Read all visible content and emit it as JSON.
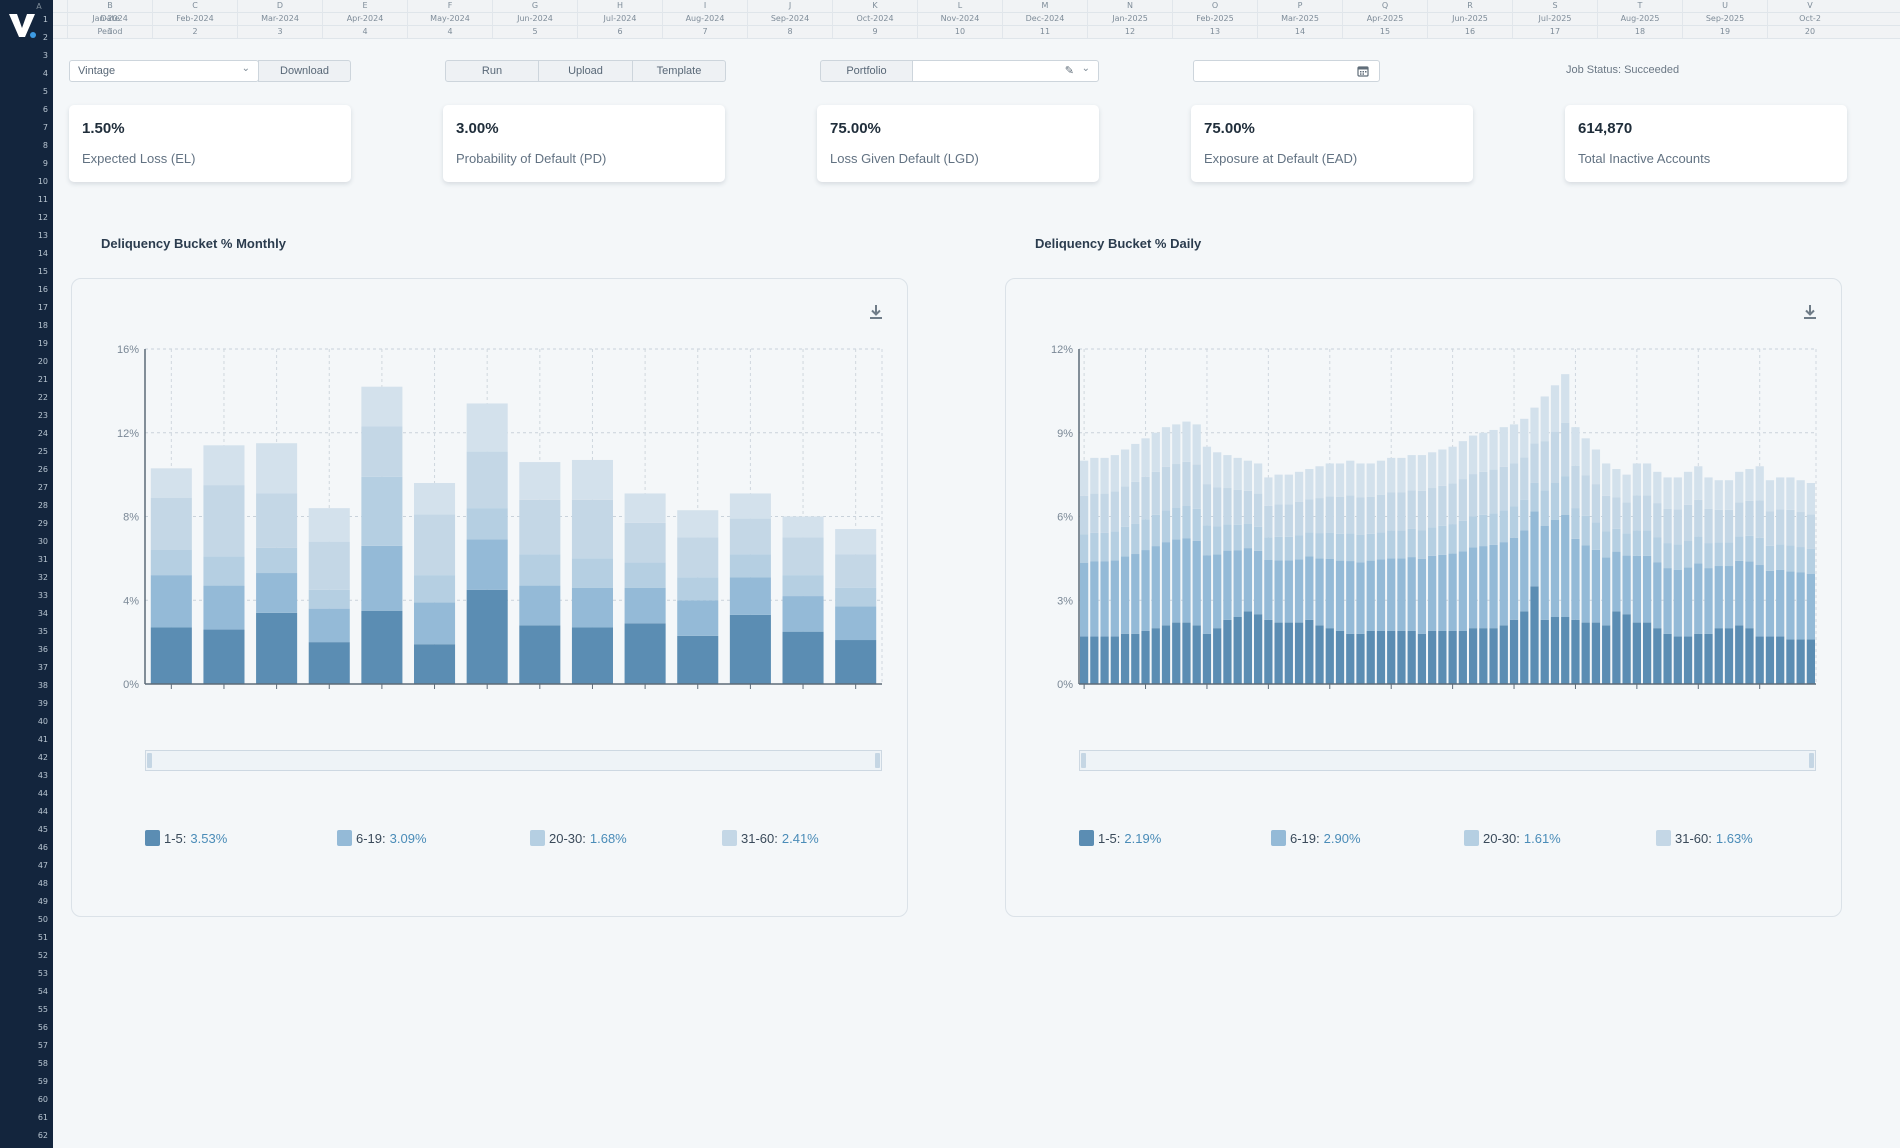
{
  "sheet": {
    "col_letters": [
      "B",
      "C",
      "D",
      "E",
      "F",
      "G",
      "H",
      "I",
      "J",
      "K",
      "L",
      "M",
      "N",
      "O",
      "P",
      "Q",
      "R",
      "S",
      "T",
      "U",
      "V"
    ],
    "row1_label": "Date",
    "row2_label": "Period",
    "dates": [
      "Jan-2024",
      "Feb-2024",
      "Mar-2024",
      "Apr-2024",
      "May-2024",
      "Jun-2024",
      "Jul-2024",
      "Aug-2024",
      "Sep-2024",
      "Oct-2024",
      "Nov-2024",
      "Dec-2024",
      "Jan-2025",
      "Feb-2025",
      "Mar-2025",
      "Apr-2025",
      "Jun-2025",
      "Jul-2025",
      "Aug-2025",
      "Sep-2025",
      "Oct-2"
    ],
    "periods": [
      "1",
      "2",
      "3",
      "4",
      "4",
      "5",
      "6",
      "7",
      "8",
      "9",
      "10",
      "11",
      "12",
      "13",
      "14",
      "15",
      "16",
      "17",
      "18",
      "19",
      "20"
    ],
    "first_col_letter": "A",
    "row_numbers": [
      "1",
      "2",
      "3",
      "4",
      "5",
      "6",
      "7",
      "8",
      "9",
      "10",
      "11",
      "12",
      "13",
      "14",
      "15",
      "16",
      "17",
      "18",
      "19",
      "20",
      "21",
      "22",
      "23",
      "24",
      "25",
      "26",
      "27",
      "28",
      "29",
      "30",
      "31",
      "32",
      "33",
      "34",
      "35",
      "36",
      "37",
      "38",
      "39",
      "40",
      "41",
      "42",
      "43",
      "44",
      "44",
      "45",
      "46",
      "47",
      "48",
      "49",
      "50",
      "51",
      "52",
      "53",
      "54",
      "55",
      "56",
      "57",
      "58",
      "59",
      "60",
      "61",
      "62"
    ]
  },
  "toolbar": {
    "vintage_placeholder": "Vintage",
    "download_label": "Download",
    "run_label": "Run",
    "upload_label": "Upload",
    "template_label": "Template",
    "portfolio_label": "Portfolio",
    "job_status": "Job Status: Succeeded"
  },
  "kpis": [
    {
      "value": "1.50%",
      "label": "Expected Loss (EL)"
    },
    {
      "value": "3.00%",
      "label": "Probability of Default (PD)"
    },
    {
      "value": "75.00%",
      "label": "Loss Given Default (LGD)"
    },
    {
      "value": "75.00%",
      "label": "Exposure at Default (EAD)"
    },
    {
      "value": "614,870",
      "label": "Total Inactive Accounts"
    }
  ],
  "colors": {
    "s1": "#5b8db3",
    "s2": "#94bad7",
    "s3": "#b5cfe2",
    "s4": "#c4d7e6",
    "s5": "#d3e1ec",
    "accent": "#4a8cb8",
    "sidebar": "#13253d"
  },
  "chart_data": [
    {
      "type": "bar",
      "title": "Deliquency Bucket % Monthly",
      "stacked": true,
      "ylim": [
        0,
        16
      ],
      "yticks": [
        "0%",
        "4%",
        "8%",
        "12%",
        "16%"
      ],
      "x_count": 14,
      "series": [
        {
          "values": [
            2.7,
            2.6,
            3.4,
            2.0,
            3.5,
            1.9,
            4.5,
            2.8,
            2.7,
            2.9,
            2.3,
            3.3,
            2.5,
            2.1
          ]
        },
        {
          "values": [
            2.5,
            2.1,
            1.9,
            1.6,
            3.1,
            2.0,
            2.4,
            1.9,
            1.9,
            1.7,
            1.7,
            1.8,
            1.7,
            1.6
          ]
        },
        {
          "values": [
            1.2,
            1.4,
            1.2,
            0.9,
            3.3,
            1.3,
            1.5,
            1.5,
            1.4,
            1.2,
            1.1,
            1.1,
            1.0,
            0.9
          ]
        },
        {
          "values": [
            2.5,
            3.4,
            2.6,
            2.3,
            2.4,
            2.9,
            2.7,
            2.6,
            2.8,
            1.9,
            1.9,
            1.7,
            1.8,
            1.6
          ]
        },
        {
          "values": [
            1.4,
            1.9,
            2.4,
            1.6,
            1.9,
            1.5,
            2.3,
            1.8,
            1.9,
            1.4,
            1.3,
            1.2,
            1.0,
            1.2
          ]
        }
      ],
      "legend": [
        {
          "name": "1-5:",
          "value": "3.53%"
        },
        {
          "name": "6-19:",
          "value": "3.09%"
        },
        {
          "name": "20-30:",
          "value": "1.68%"
        },
        {
          "name": "31-60:",
          "value": "2.41%"
        }
      ],
      "grid": true,
      "legend_position": "bottom"
    },
    {
      "type": "bar",
      "title": "Deliquency Bucket % Daily",
      "stacked": true,
      "ylim": [
        0,
        12
      ],
      "yticks": [
        "0%",
        "3%",
        "6%",
        "9%",
        "12%"
      ],
      "x_count": 72,
      "totals": [
        8.0,
        8.1,
        8.1,
        8.2,
        8.4,
        8.6,
        8.8,
        9.0,
        9.2,
        9.3,
        9.4,
        9.3,
        8.5,
        8.3,
        8.2,
        8.1,
        8.0,
        7.9,
        7.4,
        7.5,
        7.5,
        7.6,
        7.7,
        7.8,
        7.9,
        7.9,
        8.0,
        7.9,
        7.9,
        8.0,
        8.1,
        8.1,
        8.2,
        8.2,
        8.3,
        8.4,
        8.5,
        8.7,
        8.9,
        9.0,
        9.1,
        9.2,
        9.3,
        9.5,
        9.9,
        10.3,
        10.7,
        11.1,
        9.2,
        8.8,
        8.4,
        7.9,
        7.7,
        7.5,
        7.9,
        7.9,
        7.6,
        7.4,
        7.4,
        7.6,
        7.8,
        7.4,
        7.3,
        7.3,
        7.6,
        7.7,
        7.8,
        7.3,
        7.4,
        7.4,
        7.3,
        7.2
      ],
      "bottom": [
        1.7,
        1.7,
        1.7,
        1.7,
        1.8,
        1.8,
        1.9,
        2.0,
        2.1,
        2.2,
        2.2,
        2.1,
        1.8,
        2.0,
        2.3,
        2.4,
        2.6,
        2.5,
        2.3,
        2.2,
        2.2,
        2.2,
        2.3,
        2.1,
        2.0,
        1.9,
        1.8,
        1.8,
        1.9,
        1.9,
        1.9,
        1.9,
        1.9,
        1.8,
        1.9,
        1.9,
        1.9,
        1.9,
        2.0,
        2.0,
        2.0,
        2.1,
        2.3,
        2.6,
        3.5,
        2.3,
        2.4,
        2.4,
        2.3,
        2.2,
        2.2,
        2.1,
        2.6,
        2.5,
        2.2,
        2.2,
        2.0,
        1.8,
        1.7,
        1.7,
        1.8,
        1.8,
        2.0,
        2.0,
        2.1,
        2.0,
        1.7,
        1.7,
        1.7,
        1.6,
        1.6,
        1.6
      ],
      "legend": [
        {
          "name": "1-5:",
          "value": "2.19%"
        },
        {
          "name": "6-19:",
          "value": "2.90%"
        },
        {
          "name": "20-30:",
          "value": "1.61%"
        },
        {
          "name": "31-60:",
          "value": "1.63%"
        }
      ],
      "grid": true,
      "legend_position": "bottom"
    }
  ]
}
